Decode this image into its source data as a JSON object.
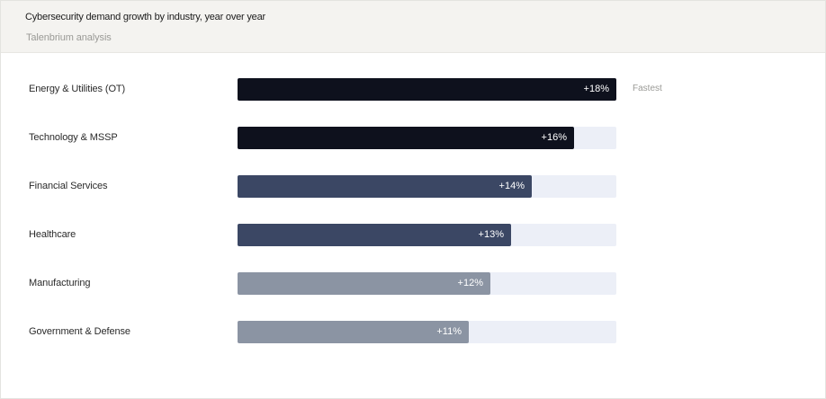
{
  "header": {
    "title": "Cybersecurity demand growth by industry, year over year",
    "subtitle": "Talenbrium analysis"
  },
  "chart_data": {
    "type": "bar",
    "orientation": "horizontal",
    "title": "Cybersecurity demand growth by industry, year over year",
    "subtitle": "Talenbrium analysis",
    "unit": "%",
    "xlim": [
      0,
      18
    ],
    "grid": false,
    "categories": [
      "Energy & Utilities (OT)",
      "Technology & MSSP",
      "Financial Services",
      "Healthcare",
      "Manufacturing",
      "Government & Defense"
    ],
    "values": [
      18,
      16,
      14,
      13,
      12,
      11
    ],
    "value_labels": [
      "+18%",
      "+16%",
      "+14%",
      "+13%",
      "+12%",
      "+11%"
    ],
    "bar_colors": [
      "#0e111d",
      "#0e111d",
      "#3b4764",
      "#3b4764",
      "#8b94a3",
      "#8b94a3"
    ],
    "track_color": "#eceff7",
    "annotations": [
      {
        "category": "Energy & Utilities (OT)",
        "text": "Fastest"
      }
    ]
  }
}
